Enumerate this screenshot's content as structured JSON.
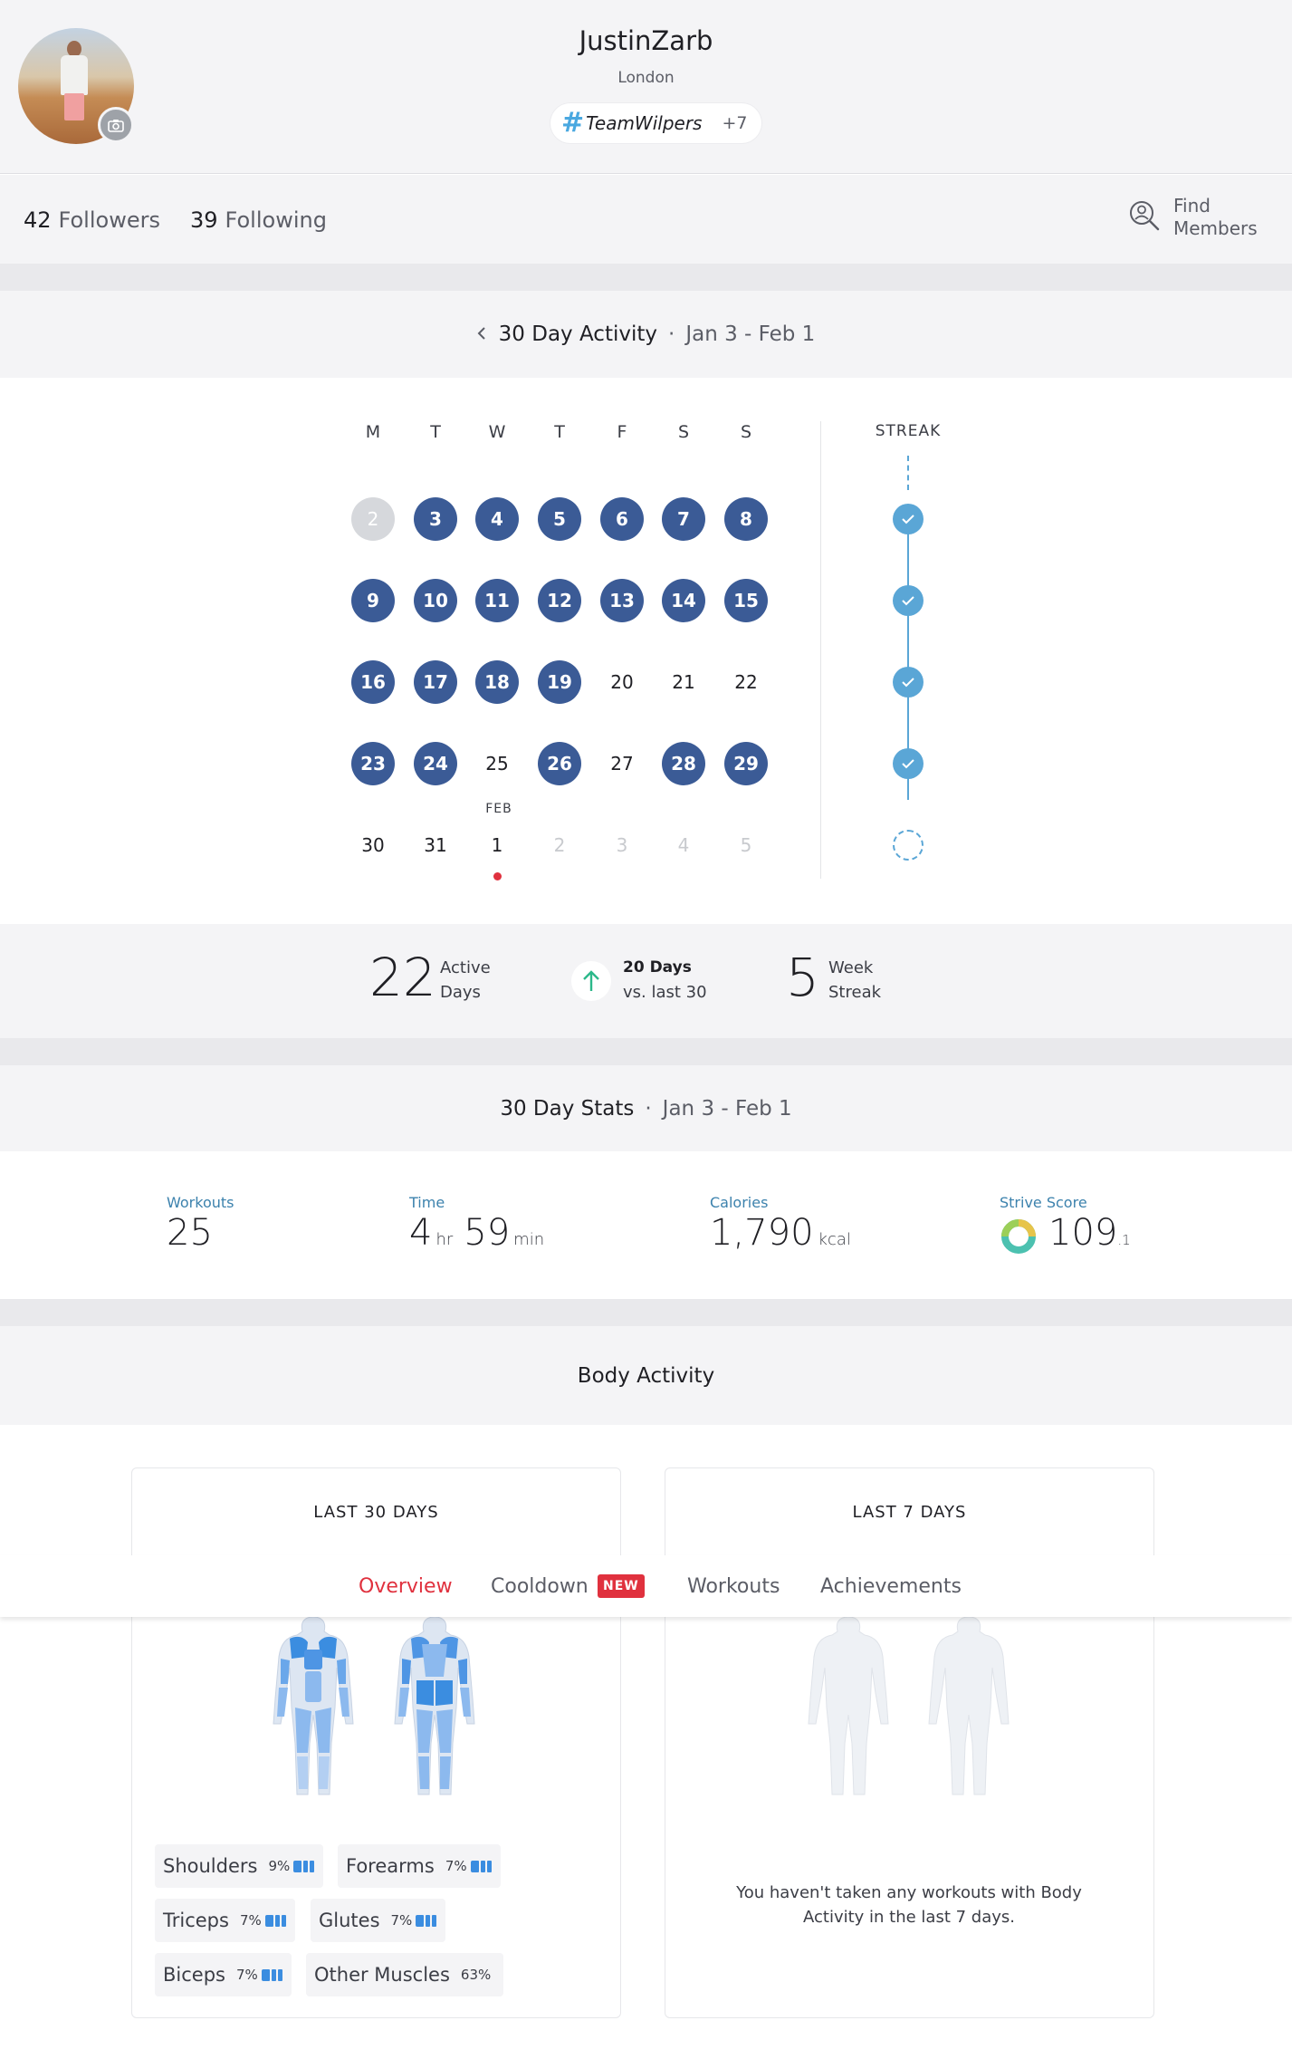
{
  "profile": {
    "username": "JustinZarb",
    "location": "London",
    "team_tag": "TeamWilpers",
    "team_more": "+7"
  },
  "social": {
    "followers_count": "42",
    "followers_label": "Followers",
    "following_count": "39",
    "following_label": "Following",
    "find_members_label": "Find Members"
  },
  "activity30": {
    "title": "30 Day Activity",
    "separator": "·",
    "range": "Jan 3 - Feb 1",
    "weekdays": [
      "M",
      "T",
      "W",
      "T",
      "F",
      "S",
      "S"
    ],
    "month_label": "FEB",
    "streak_label": "STREAK",
    "weeks": [
      [
        {
          "d": "2",
          "s": "past"
        },
        {
          "d": "3",
          "s": "active"
        },
        {
          "d": "4",
          "s": "active"
        },
        {
          "d": "5",
          "s": "active"
        },
        {
          "d": "6",
          "s": "active"
        },
        {
          "d": "7",
          "s": "active"
        },
        {
          "d": "8",
          "s": "active"
        }
      ],
      [
        {
          "d": "9",
          "s": "active"
        },
        {
          "d": "10",
          "s": "active"
        },
        {
          "d": "11",
          "s": "active"
        },
        {
          "d": "12",
          "s": "active"
        },
        {
          "d": "13",
          "s": "active"
        },
        {
          "d": "14",
          "s": "active"
        },
        {
          "d": "15",
          "s": "active"
        }
      ],
      [
        {
          "d": "16",
          "s": "active"
        },
        {
          "d": "17",
          "s": "active"
        },
        {
          "d": "18",
          "s": "active"
        },
        {
          "d": "19",
          "s": "active"
        },
        {
          "d": "20",
          "s": "inactive"
        },
        {
          "d": "21",
          "s": "inactive"
        },
        {
          "d": "22",
          "s": "inactive"
        }
      ],
      [
        {
          "d": "23",
          "s": "active"
        },
        {
          "d": "24",
          "s": "active"
        },
        {
          "d": "25",
          "s": "inactive"
        },
        {
          "d": "26",
          "s": "active"
        },
        {
          "d": "27",
          "s": "inactive"
        },
        {
          "d": "28",
          "s": "active"
        },
        {
          "d": "29",
          "s": "active"
        }
      ],
      [
        {
          "d": "30",
          "s": "inactive"
        },
        {
          "d": "31",
          "s": "inactive"
        },
        {
          "d": "1",
          "s": "inactive"
        },
        {
          "d": "2",
          "s": "future"
        },
        {
          "d": "3",
          "s": "future"
        },
        {
          "d": "4",
          "s": "future"
        },
        {
          "d": "5",
          "s": "future"
        }
      ]
    ],
    "streak": [
      true,
      true,
      true,
      true,
      false
    ]
  },
  "summary": {
    "active_days_value": "22",
    "active_days_label_1": "Active",
    "active_days_label_2": "Days",
    "trend_line_1": "20 Days",
    "trend_line_2": "vs. last 30",
    "week_streak_value": "5",
    "week_streak_label_1": "Week",
    "week_streak_label_2": "Streak",
    "trend_color": "#2cb88a"
  },
  "stats30": {
    "title": "30 Day Stats",
    "separator": "·",
    "range": "Jan 3 - Feb 1",
    "workouts_label": "Workouts",
    "workouts_value": "25",
    "time_label": "Time",
    "time_hours": "4",
    "time_hours_unit": "hr",
    "time_minutes": "59",
    "time_minutes_unit": "min",
    "calories_label": "Calories",
    "calories_value": "1,790",
    "calories_unit": "kcal",
    "strive_label": "Strive Score",
    "strive_value": "109",
    "strive_decimal": ".1"
  },
  "body_activity": {
    "title": "Body Activity",
    "card_30_title": "LAST 30 DAYS",
    "card_7_title": "LAST 7 DAYS",
    "empty_message": "You haven't taken any workouts with Body Activity in the last 7 days.",
    "muscles": [
      {
        "name": "Shoulders",
        "pct": "9%"
      },
      {
        "name": "Forearms",
        "pct": "7%"
      },
      {
        "name": "Triceps",
        "pct": "7%"
      },
      {
        "name": "Glutes",
        "pct": "7%"
      },
      {
        "name": "Biceps",
        "pct": "7%"
      },
      {
        "name": "Other Muscles",
        "pct": "63%"
      }
    ]
  },
  "tabs": {
    "overview": "Overview",
    "cooldown": "Cooldown",
    "new_badge": "NEW",
    "workouts": "Workouts",
    "achievements": "Achievements"
  },
  "colors": {
    "accent_red": "#e0313e",
    "active_day": "#3b5b96",
    "streak_blue": "#5aa6d6",
    "muscle_blue": "#3b8de0"
  }
}
